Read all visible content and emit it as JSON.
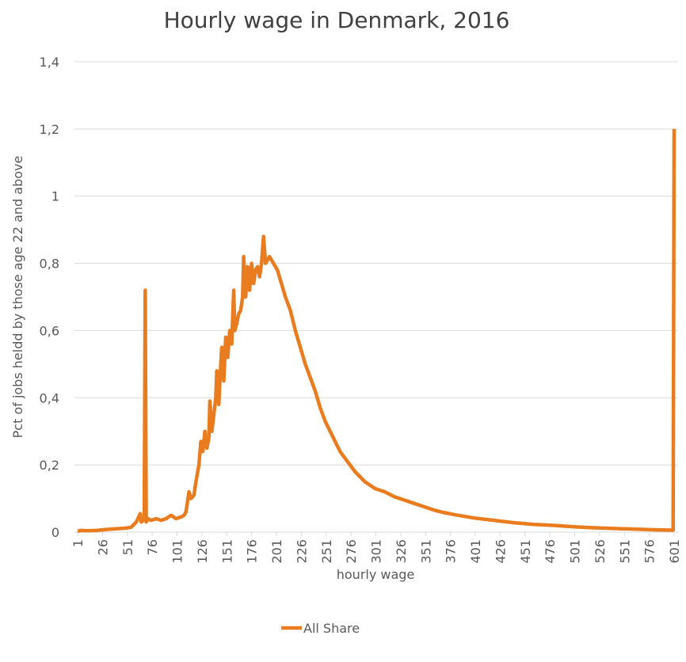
{
  "chart_data": {
    "type": "line",
    "title": "Hourly wage in Denmark, 2016",
    "x_label": "hourly wage",
    "y_label": "Pct of jobs heldd by those age 22 and above",
    "xlim": [
      1,
      601
    ],
    "xticks": [
      1,
      26,
      51,
      76,
      101,
      126,
      151,
      176,
      201,
      226,
      251,
      276,
      301,
      326,
      351,
      376,
      401,
      426,
      451,
      476,
      501,
      526,
      551,
      576,
      601
    ],
    "ylim": [
      0,
      1.4
    ],
    "yticks": [
      0,
      {
        "value": 0.2,
        "label": "0,2"
      },
      {
        "value": 0.4,
        "label": "0,4"
      },
      {
        "value": 0.6,
        "label": "0,6"
      },
      {
        "value": 0.8,
        "label": "0,8"
      },
      1,
      {
        "value": 1.2,
        "label": "1,2"
      },
      {
        "value": 1.4,
        "label": "1,4"
      }
    ],
    "grid": true,
    "legend": "bottom",
    "x": [
      1,
      5,
      10,
      20,
      30,
      40,
      50,
      55,
      60,
      64,
      65,
      67,
      68,
      69,
      70,
      72,
      75,
      80,
      85,
      90,
      95,
      100,
      105,
      108,
      110,
      113,
      115,
      118,
      120,
      123,
      125,
      127,
      129,
      131,
      133,
      134,
      136,
      138,
      140,
      141,
      143,
      145,
      146,
      148,
      150,
      152,
      154,
      156,
      158,
      159,
      161,
      163,
      165,
      167,
      168,
      170,
      172,
      174,
      176,
      178,
      180,
      182,
      184,
      186,
      188,
      190,
      194,
      198,
      202,
      206,
      210,
      215,
      220,
      225,
      230,
      235,
      240,
      245,
      250,
      255,
      260,
      265,
      270,
      275,
      280,
      290,
      300,
      310,
      320,
      330,
      340,
      350,
      360,
      370,
      380,
      390,
      400,
      420,
      440,
      460,
      480,
      500,
      520,
      540,
      560,
      580,
      598,
      600,
      601
    ],
    "series": [
      {
        "name": "All Share",
        "color": "#e97c1f",
        "values": [
          0.003,
          0.005,
          0.004,
          0.005,
          0.008,
          0.01,
          0.012,
          0.015,
          0.03,
          0.055,
          0.03,
          0.035,
          0.04,
          0.72,
          0.03,
          0.04,
          0.035,
          0.04,
          0.035,
          0.04,
          0.05,
          0.04,
          0.045,
          0.05,
          0.06,
          0.12,
          0.1,
          0.11,
          0.15,
          0.2,
          0.27,
          0.24,
          0.3,
          0.25,
          0.28,
          0.39,
          0.3,
          0.35,
          0.4,
          0.48,
          0.38,
          0.5,
          0.55,
          0.45,
          0.58,
          0.52,
          0.6,
          0.56,
          0.72,
          0.6,
          0.62,
          0.65,
          0.66,
          0.7,
          0.82,
          0.7,
          0.79,
          0.72,
          0.8,
          0.74,
          0.78,
          0.79,
          0.76,
          0.8,
          0.88,
          0.8,
          0.82,
          0.8,
          0.78,
          0.74,
          0.7,
          0.66,
          0.6,
          0.55,
          0.5,
          0.46,
          0.42,
          0.37,
          0.33,
          0.3,
          0.27,
          0.24,
          0.22,
          0.2,
          0.18,
          0.15,
          0.13,
          0.12,
          0.105,
          0.095,
          0.085,
          0.075,
          0.065,
          0.058,
          0.052,
          0.047,
          0.042,
          0.035,
          0.028,
          0.023,
          0.02,
          0.016,
          0.013,
          0.011,
          0.009,
          0.007,
          0.006,
          0.006,
          1.2
        ]
      }
    ]
  }
}
